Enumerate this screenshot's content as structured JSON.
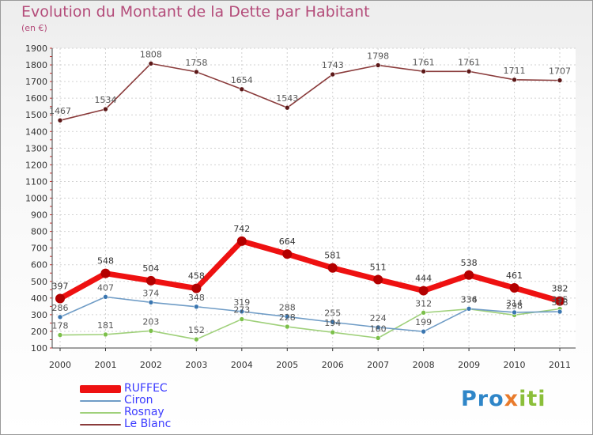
{
  "title": "Evolution du Montant de la Dette par Habitant",
  "subtitle": "(en €)",
  "logo": {
    "part1": "Pro",
    "part2": "x",
    "part3": "iti"
  },
  "chart_data": {
    "type": "line",
    "title": "Evolution du Montant de la Dette par Habitant",
    "ylabel": "(en €)",
    "xlabel": "",
    "x": [
      "2000",
      "2001",
      "2002",
      "2003",
      "2004",
      "2005",
      "2006",
      "2007",
      "2008",
      "2009",
      "2010",
      "2011"
    ],
    "ylim": [
      100,
      1900
    ],
    "yticks": [
      100,
      200,
      300,
      400,
      500,
      600,
      700,
      800,
      900,
      1000,
      1100,
      1200,
      1300,
      1400,
      1500,
      1600,
      1700,
      1800,
      1900
    ],
    "grid": true,
    "legend_position": "bottom-left",
    "series": [
      {
        "name": "RUFFEC",
        "color": "#ee1111",
        "marker": "#b30000",
        "width": 7,
        "r": 6,
        "labelColor": "#333333",
        "values": [
          397,
          548,
          504,
          458,
          742,
          664,
          581,
          511,
          444,
          538,
          461,
          382
        ]
      },
      {
        "name": "Ciron",
        "color": "#6f9cc6",
        "marker": "#3a76b0",
        "width": 1.6,
        "r": 3,
        "labelColor": "#555555",
        "values": [
          286,
          407,
          374,
          348,
          319,
          288,
          255,
          224,
          199,
          336,
          314,
          318
        ]
      },
      {
        "name": "Rosnay",
        "color": "#9fd07a",
        "marker": "#7cc04a",
        "width": 1.6,
        "r": 3,
        "labelColor": "#555555",
        "values": [
          178,
          181,
          203,
          152,
          273,
          228,
          194,
          160,
          312,
          334,
          298,
          335
        ]
      },
      {
        "name": "Le Blanc",
        "color": "#8a3b3b",
        "marker": "#5c1818",
        "width": 1.6,
        "r": 3,
        "labelColor": "#555555",
        "values": [
          1467,
          1534,
          1808,
          1758,
          1654,
          1543,
          1743,
          1798,
          1761,
          1761,
          1711,
          1707
        ]
      }
    ]
  }
}
